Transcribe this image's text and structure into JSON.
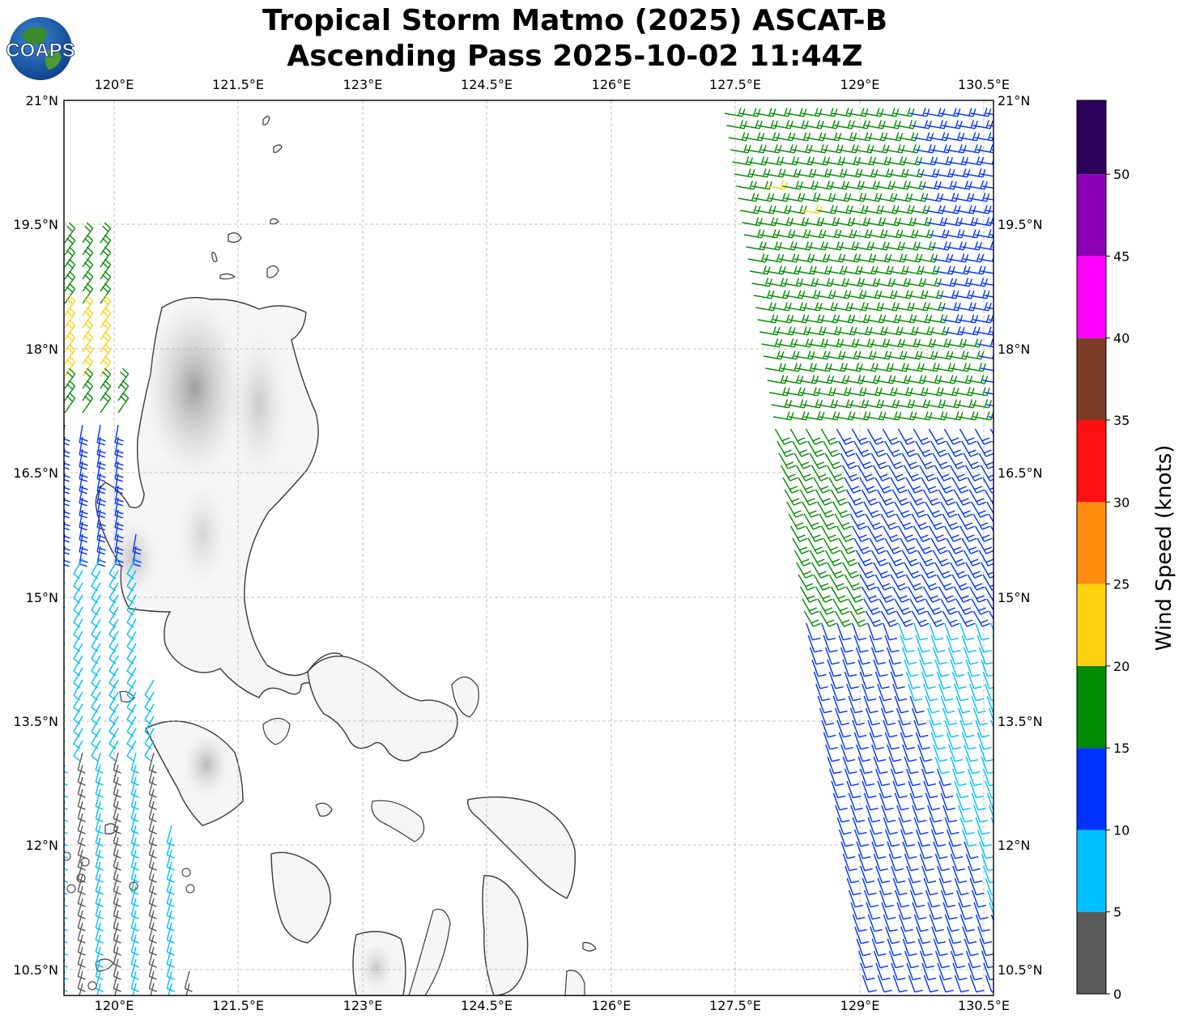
{
  "title": {
    "line1": "Tropical Storm Matmo (2025) ASCAT-B",
    "line2": "Ascending Pass 2025-10-02 11:44Z"
  },
  "logo": {
    "text": "COAPS",
    "icon": "globe-logo-icon"
  },
  "map": {
    "lon_ticks": [
      "120°E",
      "121.5°E",
      "123°E",
      "124.5°E",
      "126°E",
      "127.5°E",
      "129°E",
      "130.5°E"
    ],
    "lat_ticks": [
      "21°N",
      "19.5°N",
      "18°N",
      "16.5°N",
      "15°N",
      "13.5°N",
      "12°N",
      "10.5°N"
    ],
    "gridlines": true,
    "region": "Luzon and Visayas, Philippines"
  },
  "colorbar": {
    "label": "Wind Speed (knots)",
    "ticks": [
      "0",
      "5",
      "10",
      "15",
      "20",
      "25",
      "30",
      "35",
      "40",
      "45",
      "50"
    ],
    "bins": [
      {
        "color": "#595959"
      },
      {
        "color": "#00bfff"
      },
      {
        "color": "#0033ff"
      },
      {
        "color": "#008c00"
      },
      {
        "color": "#ffd20f"
      },
      {
        "color": "#ff8c0f"
      },
      {
        "color": "#ff0f0f"
      },
      {
        "color": "#7d3c28"
      },
      {
        "color": "#ff00ff"
      },
      {
        "color": "#8c00b4"
      },
      {
        "color": "#2d0059"
      }
    ]
  }
}
